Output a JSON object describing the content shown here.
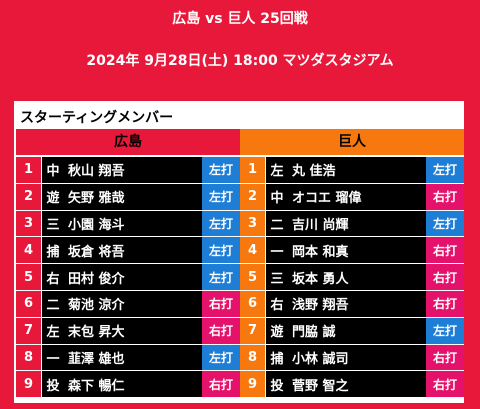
{
  "header": {
    "title": "広島 vs 巨人 25回戦",
    "datetime": "2024年 9月28日(土) 18:00 マツダスタジアム"
  },
  "panel": {
    "title": "スターティングメンバー"
  },
  "teams": {
    "home": {
      "name": "広島",
      "players": [
        {
          "num": "1",
          "pos": "中",
          "name": "秋山 翔吾",
          "bat": "左打"
        },
        {
          "num": "2",
          "pos": "遊",
          "name": "矢野 雅哉",
          "bat": "左打"
        },
        {
          "num": "3",
          "pos": "三",
          "name": "小園 海斗",
          "bat": "左打"
        },
        {
          "num": "4",
          "pos": "捕",
          "name": "坂倉 将吾",
          "bat": "左打"
        },
        {
          "num": "5",
          "pos": "右",
          "name": "田村 俊介",
          "bat": "左打"
        },
        {
          "num": "6",
          "pos": "二",
          "name": "菊池 涼介",
          "bat": "右打"
        },
        {
          "num": "7",
          "pos": "左",
          "name": "末包 昇大",
          "bat": "右打"
        },
        {
          "num": "8",
          "pos": "一",
          "name": "韮澤 雄也",
          "bat": "左打"
        },
        {
          "num": "9",
          "pos": "投",
          "name": "森下 暢仁",
          "bat": "右打"
        }
      ]
    },
    "away": {
      "name": "巨人",
      "players": [
        {
          "num": "1",
          "pos": "左",
          "name": "丸 佳浩",
          "bat": "左打"
        },
        {
          "num": "2",
          "pos": "中",
          "name": "オコエ 瑠偉",
          "bat": "右打"
        },
        {
          "num": "3",
          "pos": "二",
          "name": "吉川 尚輝",
          "bat": "左打"
        },
        {
          "num": "4",
          "pos": "一",
          "name": "岡本 和真",
          "bat": "右打"
        },
        {
          "num": "5",
          "pos": "三",
          "name": "坂本 勇人",
          "bat": "右打"
        },
        {
          "num": "6",
          "pos": "右",
          "name": "浅野 翔吾",
          "bat": "右打"
        },
        {
          "num": "7",
          "pos": "遊",
          "name": "門脇 誠",
          "bat": "左打"
        },
        {
          "num": "8",
          "pos": "捕",
          "name": "小林 誠司",
          "bat": "右打"
        },
        {
          "num": "9",
          "pos": "投",
          "name": "菅野 智之",
          "bat": "右打"
        }
      ]
    }
  },
  "colors": {
    "background": "#e8183a",
    "away_accent": "#f7780e",
    "left_bat": "#1e7ed6",
    "right_bat": "#e5126b"
  }
}
